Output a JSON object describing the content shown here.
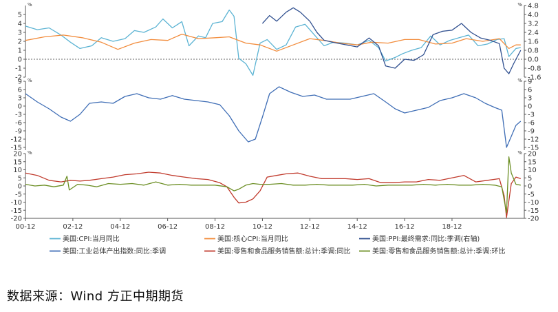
{
  "chart_data": [
    {
      "type": "line",
      "panel": "top",
      "left_unit": "%",
      "right_unit": "%",
      "left_axis": {
        "ylim": [
          -2,
          6
        ],
        "ticks": [
          "-2",
          "-1",
          "0",
          "1",
          "2",
          "3",
          "4",
          "5"
        ],
        "tick_values": [
          -2,
          -1,
          0,
          1,
          2,
          3,
          4,
          5
        ]
      },
      "right_axis": {
        "ylim": [
          -1.6,
          4.8
        ],
        "ticks": [
          "-1.6",
          "-0.8",
          "0.0",
          "0.8",
          "1.6",
          "2.4",
          "3.2",
          "4.0",
          "4.8"
        ],
        "tick_values": [
          -1.6,
          -0.8,
          0.0,
          0.8,
          1.6,
          2.4,
          3.2,
          4.0,
          4.8
        ]
      },
      "series": [
        {
          "name": "美国:CPI:当月同比",
          "color": "#5bb3d3",
          "axis": "left",
          "x": [
            2000.0,
            2000.5,
            2001.0,
            2001.5,
            2001.9,
            2002.3,
            2002.8,
            2003.2,
            2003.7,
            2004.2,
            2004.6,
            2005.0,
            2005.5,
            2005.8,
            2006.2,
            2006.6,
            2006.9,
            2007.3,
            2007.6,
            2007.9,
            2008.3,
            2008.6,
            2008.8,
            2009.0,
            2009.3,
            2009.6,
            2009.9,
            2010.2,
            2010.6,
            2011.0,
            2011.4,
            2011.8,
            2012.2,
            2012.6,
            2013.0,
            2013.5,
            2014.0,
            2014.5,
            2014.9,
            2015.2,
            2015.6,
            2015.9,
            2016.3,
            2016.7,
            2017.1,
            2017.5,
            2017.9,
            2018.3,
            2018.7,
            2019.1,
            2019.5,
            2019.9,
            2020.2,
            2020.4,
            2020.7,
            2020.9
          ],
          "values": [
            3.7,
            3.3,
            3.5,
            2.7,
            1.9,
            1.2,
            1.5,
            2.4,
            2.0,
            2.3,
            3.2,
            3.0,
            3.6,
            4.5,
            3.5,
            4.2,
            1.5,
            2.6,
            2.4,
            4.0,
            4.2,
            5.5,
            4.8,
            0.1,
            -0.5,
            -1.8,
            1.8,
            2.2,
            1.1,
            1.6,
            3.6,
            3.9,
            2.7,
            1.5,
            1.9,
            1.8,
            1.6,
            2.1,
            1.3,
            -0.2,
            0.2,
            0.6,
            1.0,
            1.3,
            2.6,
            1.6,
            2.1,
            2.4,
            2.7,
            1.5,
            1.7,
            2.2,
            2.3,
            0.3,
            1.2,
            1.3
          ]
        },
        {
          "name": "美国:核心CPI:当月同比",
          "color": "#f28c3c",
          "axis": "left",
          "x": [
            2000.0,
            2000.8,
            2001.6,
            2002.4,
            2003.2,
            2003.9,
            2004.6,
            2005.3,
            2006.0,
            2006.6,
            2007.3,
            2008.0,
            2008.6,
            2009.3,
            2009.9,
            2010.6,
            2011.3,
            2012.0,
            2012.6,
            2013.3,
            2014.0,
            2014.6,
            2015.3,
            2016.0,
            2016.6,
            2017.3,
            2018.0,
            2018.6,
            2019.3,
            2020.0,
            2020.4,
            2020.7,
            2020.9
          ],
          "values": [
            2.1,
            2.5,
            2.7,
            2.4,
            1.9,
            1.1,
            1.8,
            2.2,
            2.1,
            2.8,
            2.3,
            2.4,
            2.5,
            1.8,
            1.6,
            0.9,
            1.6,
            2.3,
            2.1,
            1.8,
            1.6,
            1.9,
            1.8,
            2.2,
            2.2,
            1.7,
            1.8,
            2.3,
            2.0,
            2.3,
            1.2,
            1.6,
            1.6
          ]
        },
        {
          "name": "美国:PPI:最终需求:同比:季调(右轴)",
          "color": "#2f4f8f",
          "axis": "right",
          "x": [
            2010.0,
            2010.3,
            2010.6,
            2011.0,
            2011.3,
            2011.6,
            2012.0,
            2012.3,
            2012.6,
            2013.0,
            2013.5,
            2014.0,
            2014.5,
            2014.9,
            2015.2,
            2015.6,
            2016.0,
            2016.4,
            2016.8,
            2017.2,
            2017.6,
            2018.0,
            2018.4,
            2018.8,
            2019.2,
            2019.6,
            2020.0,
            2020.2,
            2020.4,
            2020.6,
            2020.9
          ],
          "values": [
            3.2,
            3.9,
            3.4,
            4.2,
            4.6,
            4.2,
            3.4,
            2.4,
            1.7,
            1.5,
            1.3,
            1.1,
            1.9,
            1.2,
            -0.6,
            -0.8,
            0.0,
            -0.1,
            0.4,
            2.2,
            2.5,
            2.6,
            3.2,
            2.4,
            1.9,
            1.7,
            1.4,
            -0.8,
            -1.3,
            -0.4,
            0.8
          ]
        }
      ]
    },
    {
      "type": "line",
      "panel": "middle",
      "left_unit": "%",
      "right_unit": "%",
      "left_axis": {
        "ylim": [
          -16,
          9
        ],
        "ticks": [
          "-15",
          "-12",
          "-9",
          "-6",
          "-3",
          "0",
          "3",
          "6",
          "9"
        ],
        "tick_values": [
          -15,
          -12,
          -9,
          -6,
          -3,
          0,
          3,
          6,
          9
        ]
      },
      "right_axis": {
        "ylim": [
          -16,
          9
        ],
        "ticks": [
          "-15",
          "-12",
          "-9",
          "-6",
          "-3",
          "0",
          "3",
          "6",
          "9"
        ],
        "tick_values": [
          -15,
          -12,
          -9,
          -6,
          -3,
          0,
          3,
          6,
          9
        ]
      },
      "series": [
        {
          "name": "美国:工业总体产出指数:同比:季调",
          "color": "#3e6db5",
          "axis": "left",
          "x": [
            2000.0,
            2000.5,
            2001.0,
            2001.5,
            2001.9,
            2002.3,
            2002.7,
            2003.2,
            2003.7,
            2004.2,
            2004.7,
            2005.2,
            2005.7,
            2006.2,
            2006.7,
            2007.2,
            2007.7,
            2008.2,
            2008.6,
            2009.0,
            2009.4,
            2009.7,
            2010.0,
            2010.3,
            2010.7,
            2011.2,
            2011.7,
            2012.2,
            2012.7,
            2013.2,
            2013.7,
            2014.2,
            2014.7,
            2015.2,
            2015.6,
            2016.0,
            2016.5,
            2017.0,
            2017.5,
            2018.0,
            2018.5,
            2019.0,
            2019.4,
            2019.8,
            2020.1,
            2020.3,
            2020.5,
            2020.7,
            2020.9
          ],
          "values": [
            4.5,
            1.5,
            -1.0,
            -4.0,
            -5.5,
            -3.0,
            1.0,
            1.5,
            1.0,
            3.5,
            4.5,
            3.0,
            2.5,
            3.8,
            2.5,
            2.0,
            1.5,
            0.5,
            -3.5,
            -9.0,
            -13.0,
            -12.0,
            -4.0,
            4.5,
            7.0,
            5.0,
            3.5,
            4.0,
            2.5,
            2.5,
            2.5,
            3.5,
            4.5,
            1.5,
            -1.0,
            -2.5,
            -1.5,
            -0.5,
            2.0,
            3.0,
            4.5,
            3.0,
            1.0,
            -0.5,
            -1.5,
            -15.0,
            -11.0,
            -7.0,
            -5.5
          ]
        }
      ]
    },
    {
      "type": "line",
      "panel": "bottom",
      "left_unit": "%",
      "right_unit": "%",
      "left_axis": {
        "ylim": [
          -20,
          20
        ],
        "ticks": [
          "-20",
          "-15",
          "-10",
          "-5",
          "0",
          "5",
          "10",
          "15",
          "20"
        ],
        "tick_values": [
          -20,
          -15,
          -10,
          -5,
          0,
          5,
          10,
          15,
          20
        ]
      },
      "right_axis": {
        "ylim": [
          -20,
          20
        ],
        "ticks": [
          "-20",
          "-15",
          "-10",
          "-5",
          "0",
          "5",
          "10",
          "15",
          "20"
        ],
        "tick_values": [
          -20,
          -15,
          -10,
          -5,
          0,
          5,
          10,
          15,
          20
        ]
      },
      "series": [
        {
          "name": "美国:零售和食品服务销售额:总计:季调:同比",
          "color": "#c0392b",
          "axis": "left",
          "x": [
            2000.0,
            2000.5,
            2001.0,
            2001.5,
            2001.9,
            2002.3,
            2002.7,
            2003.2,
            2003.7,
            2004.2,
            2004.7,
            2005.2,
            2005.7,
            2006.2,
            2006.7,
            2007.2,
            2007.7,
            2008.2,
            2008.5,
            2008.8,
            2009.0,
            2009.3,
            2009.6,
            2009.9,
            2010.2,
            2010.6,
            2011.0,
            2011.5,
            2012.0,
            2012.5,
            2013.0,
            2013.5,
            2014.0,
            2014.5,
            2015.0,
            2015.5,
            2016.0,
            2016.5,
            2017.0,
            2017.5,
            2018.0,
            2018.5,
            2019.0,
            2019.5,
            2020.0,
            2020.2,
            2020.3,
            2020.5,
            2020.7,
            2020.9
          ],
          "values": [
            8.0,
            6.5,
            3.5,
            2.5,
            3.5,
            3.0,
            3.5,
            4.5,
            5.5,
            7.0,
            7.5,
            8.5,
            8.0,
            6.5,
            5.5,
            4.5,
            4.0,
            2.0,
            -0.5,
            -7.0,
            -10.5,
            -10.0,
            -8.0,
            -3.0,
            5.5,
            6.5,
            7.5,
            8.0,
            6.0,
            4.5,
            4.5,
            4.5,
            4.0,
            4.5,
            2.0,
            2.0,
            2.5,
            2.5,
            4.0,
            3.5,
            5.0,
            6.5,
            2.5,
            3.5,
            4.5,
            -6.0,
            -19.5,
            1.5,
            5.5,
            4.5
          ]
        },
        {
          "name": "美国:零售和食品服务销售额:总计:季调:环比",
          "color": "#6b8e23",
          "axis": "left",
          "x": [
            2000.0,
            2000.4,
            2000.8,
            2001.2,
            2001.6,
            2001.75,
            2001.85,
            2002.2,
            2002.6,
            2003.0,
            2003.5,
            2004.0,
            2004.5,
            2005.0,
            2005.5,
            2006.0,
            2006.5,
            2007.0,
            2007.5,
            2008.0,
            2008.5,
            2008.8,
            2009.0,
            2009.3,
            2009.6,
            2009.9,
            2010.3,
            2010.8,
            2011.3,
            2011.8,
            2012.3,
            2012.8,
            2013.3,
            2013.8,
            2014.3,
            2014.8,
            2015.3,
            2015.8,
            2016.3,
            2016.8,
            2017.3,
            2017.8,
            2018.3,
            2018.8,
            2019.3,
            2019.8,
            2020.1,
            2020.2,
            2020.3,
            2020.4,
            2020.5,
            2020.7,
            2020.9
          ],
          "values": [
            1.0,
            0.0,
            0.5,
            -0.5,
            0.5,
            6.0,
            -2.5,
            1.0,
            0.5,
            -0.5,
            1.5,
            1.0,
            1.5,
            0.5,
            2.5,
            0.5,
            1.0,
            0.5,
            0.5,
            0.5,
            -0.5,
            -3.0,
            -2.0,
            0.5,
            1.5,
            1.0,
            1.0,
            1.5,
            0.5,
            0.5,
            1.0,
            0.5,
            0.5,
            0.5,
            1.0,
            0.0,
            0.5,
            0.5,
            0.5,
            1.0,
            0.5,
            1.0,
            0.5,
            0.5,
            1.0,
            0.5,
            -0.5,
            -8.5,
            -16.5,
            18.0,
            8.0,
            1.0,
            0.5
          ]
        }
      ]
    }
  ],
  "x_axis": {
    "range": [
      2000.0,
      2021.05
    ],
    "tick_labels": [
      "00-12",
      "02-12",
      "04-12",
      "06-12",
      "08-12",
      "10-12",
      "12-12",
      "14-12",
      "16-12",
      "18-12"
    ],
    "tick_values": [
      2000.0,
      2002.0,
      2004.0,
      2006.0,
      2008.0,
      2010.0,
      2012.0,
      2014.0,
      2016.0,
      2018.0
    ]
  },
  "legend": [
    {
      "label": "美国:CPI:当月同比",
      "color": "#5bb3d3"
    },
    {
      "label": "美国:核心CPI:当月同比",
      "color": "#f28c3c"
    },
    {
      "label": "美国:PPI:最终需求:同比:季调(右轴)",
      "color": "#2f4f8f"
    },
    {
      "label": "美国:工业总体产出指数:同比:季调",
      "color": "#3e6db5"
    },
    {
      "label": "美国:零售和食品服务销售额:总计:季调:同比",
      "color": "#c0392b"
    },
    {
      "label": "美国:零售和食品服务销售额:总计:季调:环比",
      "color": "#6b8e23"
    }
  ],
  "source_text": "数据来源：Wind  方正中期期货"
}
